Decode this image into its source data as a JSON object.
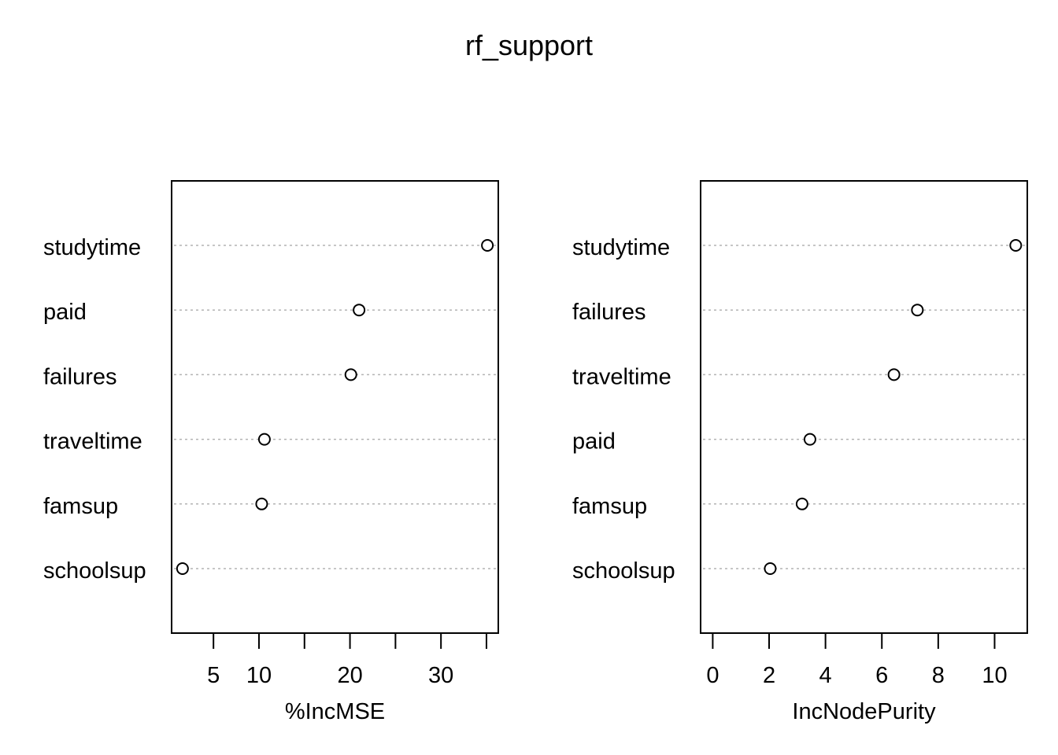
{
  "title": "rf_support",
  "chart_data": [
    {
      "type": "scatter",
      "xlabel": "%IncMSE",
      "ylabel": "",
      "categories": [
        "studytime",
        "paid",
        "failures",
        "traveltime",
        "famsup",
        "schoolsup"
      ],
      "values": [
        35.1,
        21.0,
        20.1,
        10.6,
        10.3,
        1.6
      ],
      "xticks": [
        5,
        10,
        15,
        20,
        25,
        30,
        35
      ],
      "xtick_labels": [
        "5",
        "10",
        "",
        "20",
        "",
        "30",
        ""
      ],
      "xlim": [
        0.4,
        36.3
      ],
      "grid": "dotted horizontal"
    },
    {
      "type": "scatter",
      "xlabel": "IncNodePurity",
      "ylabel": "",
      "categories": [
        "studytime",
        "failures",
        "traveltime",
        "paid",
        "famsup",
        "schoolsup"
      ],
      "values": [
        10.75,
        7.26,
        6.43,
        3.45,
        3.17,
        2.04
      ],
      "xticks": [
        0,
        2,
        4,
        6,
        8,
        10
      ],
      "xtick_labels": [
        "0",
        "2",
        "4",
        "6",
        "8",
        "10"
      ],
      "xlim": [
        -0.43,
        11.16
      ],
      "grid": "dotted horizontal"
    }
  ]
}
